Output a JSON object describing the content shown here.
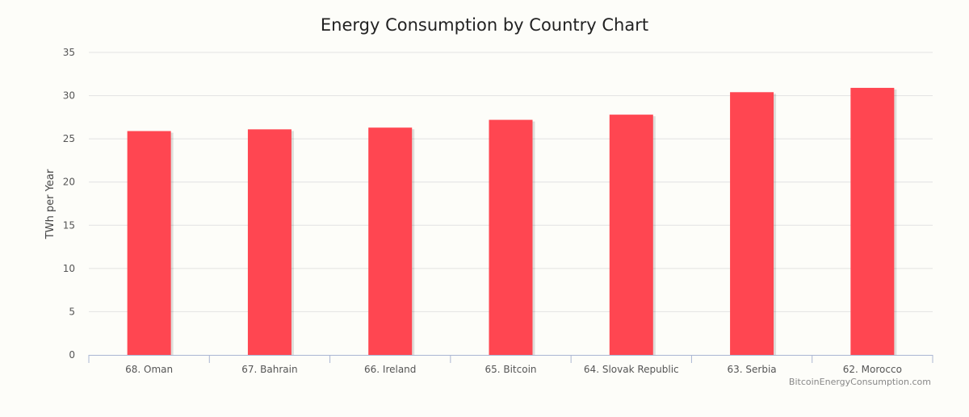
{
  "chart_data": {
    "type": "bar",
    "title": "Energy Consumption by Country Chart",
    "xlabel": "",
    "ylabel": "TWh per Year",
    "categories": [
      "68. Oman",
      "67. Bahrain",
      "66. Ireland",
      "65. Bitcoin",
      "64. Slovak Republic",
      "63. Serbia",
      "62. Morocco"
    ],
    "values": [
      25.9,
      26.1,
      26.3,
      27.2,
      27.8,
      30.4,
      30.9
    ],
    "ylim": [
      0,
      35
    ],
    "yticks": [
      0,
      5,
      10,
      15,
      20,
      25,
      30,
      35
    ],
    "grid": true,
    "legend": "none",
    "bar_color": "#ff4651",
    "credit": "BitcoinEnergyConsumption.com"
  }
}
